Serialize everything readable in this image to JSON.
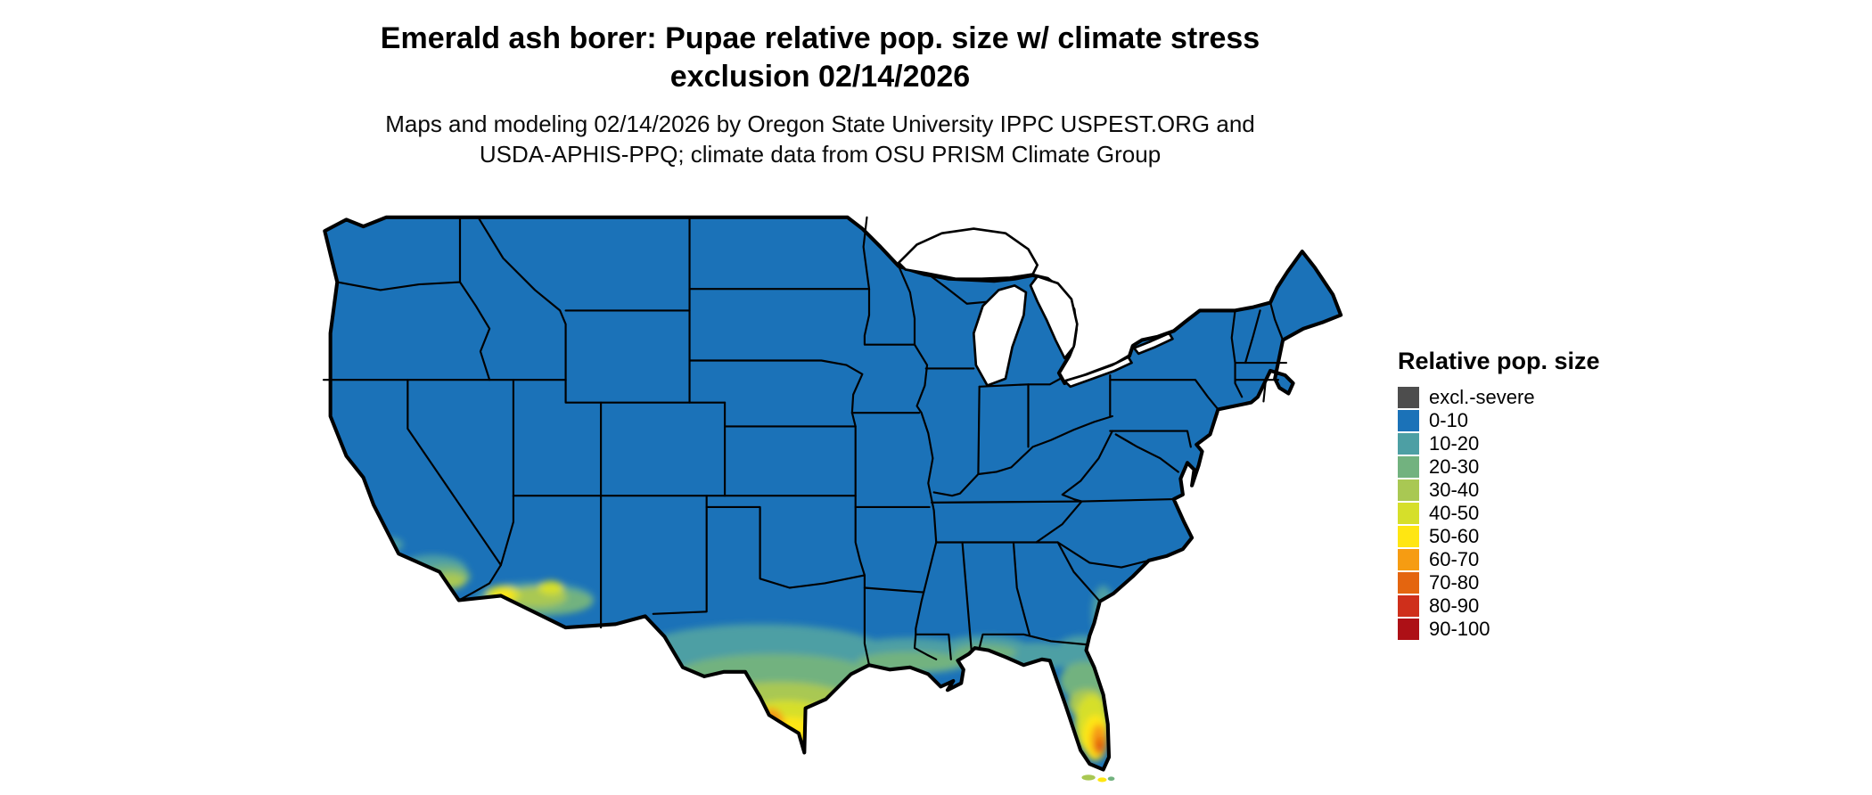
{
  "header": {
    "title_line1": "Emerald ash borer: Pupae relative pop. size w/ climate stress",
    "title_line2": "exclusion 02/14/2026",
    "subtitle_line1": "Maps and modeling 02/14/2026 by Oregon State University IPPC USPEST.ORG and",
    "subtitle_line2": "USDA-APHIS-PPQ; climate data from OSU PRISM Climate Group"
  },
  "legend": {
    "title": "Relative pop. size",
    "items": [
      {
        "label": "excl.-severe",
        "color": "#4d4d4d"
      },
      {
        "label": "0-10",
        "color": "#1b72b8"
      },
      {
        "label": "10-20",
        "color": "#4d9fa4"
      },
      {
        "label": "20-30",
        "color": "#72b27f"
      },
      {
        "label": "30-40",
        "color": "#a9c853"
      },
      {
        "label": "40-50",
        "color": "#d6df2a"
      },
      {
        "label": "50-60",
        "color": "#ffe612"
      },
      {
        "label": "60-70",
        "color": "#f69c12"
      },
      {
        "label": "70-80",
        "color": "#e4650f"
      },
      {
        "label": "80-90",
        "color": "#cf2f1b"
      },
      {
        "label": "90-100",
        "color": "#ad1016"
      }
    ]
  },
  "map": {
    "region_label": "Contiguous United States"
  }
}
